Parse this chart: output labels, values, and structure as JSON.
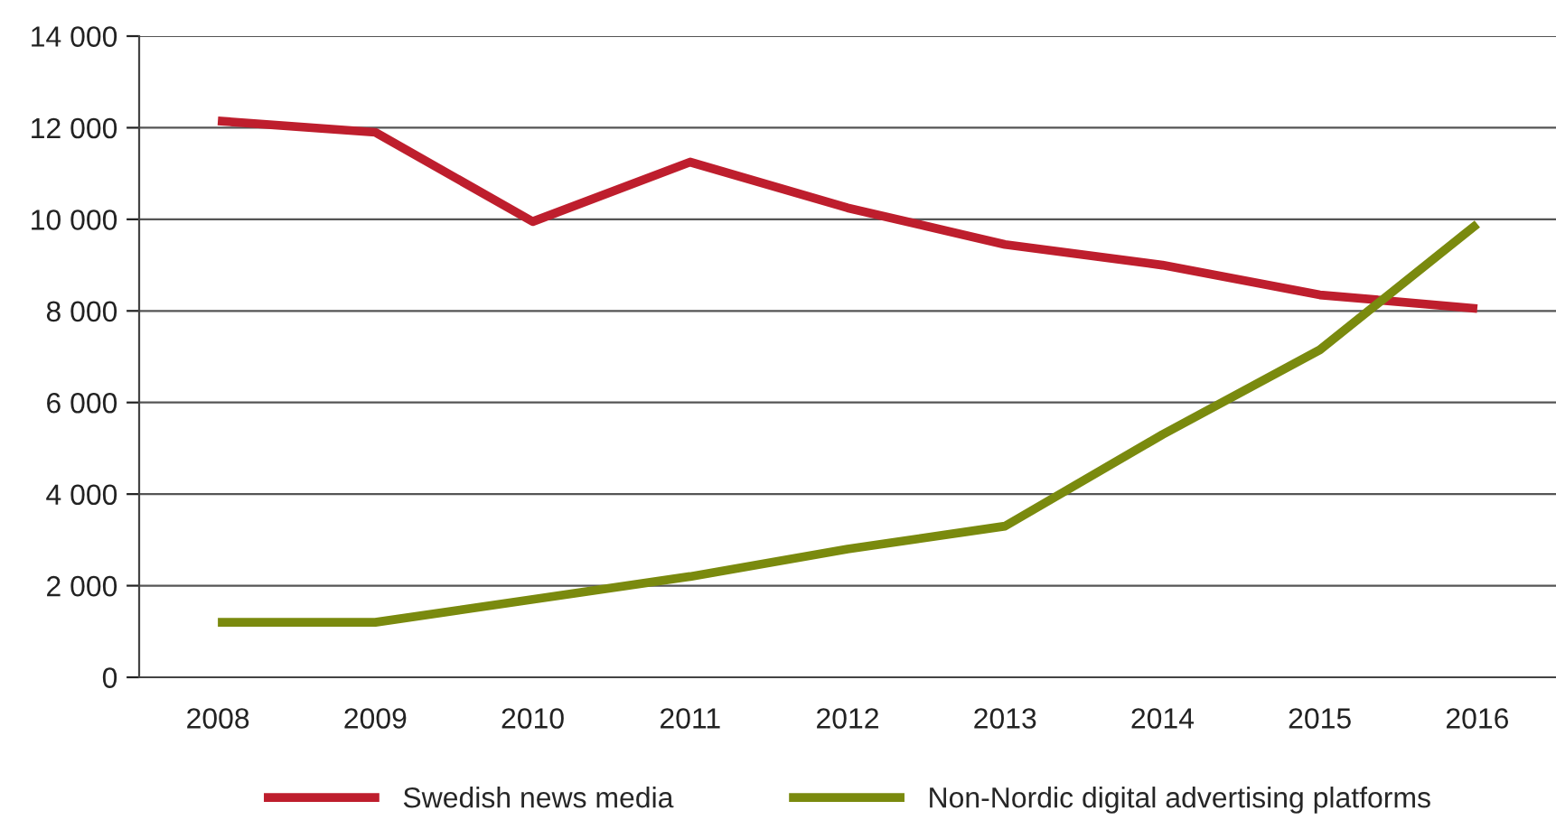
{
  "chart_data": {
    "type": "line",
    "categories": [
      "2008",
      "2009",
      "2010",
      "2011",
      "2012",
      "2013",
      "2014",
      "2015",
      "2016"
    ],
    "series": [
      {
        "name": "Swedish news media",
        "color": "#be1e2d",
        "values": [
          12150,
          11900,
          9950,
          11250,
          10250,
          9450,
          9000,
          8350,
          8050
        ]
      },
      {
        "name": "Non-Nordic digital advertising platforms",
        "color": "#7a8a0e",
        "values": [
          1200,
          1200,
          1700,
          2200,
          2800,
          3300,
          5300,
          7150,
          9900
        ]
      }
    ],
    "ylim": [
      0,
      14000
    ],
    "yticks": [
      {
        "value": 0,
        "label": "0"
      },
      {
        "value": 2000,
        "label": "2 000"
      },
      {
        "value": 4000,
        "label": "4 000"
      },
      {
        "value": 6000,
        "label": "6 000"
      },
      {
        "value": 8000,
        "label": "8 000"
      },
      {
        "value": 10000,
        "label": "10 000"
      },
      {
        "value": 12000,
        "label": "12 000"
      },
      {
        "value": 14000,
        "label": "14 000"
      }
    ],
    "grid": "y",
    "legend": "bottom",
    "marker": "none",
    "line_style": "solid"
  }
}
